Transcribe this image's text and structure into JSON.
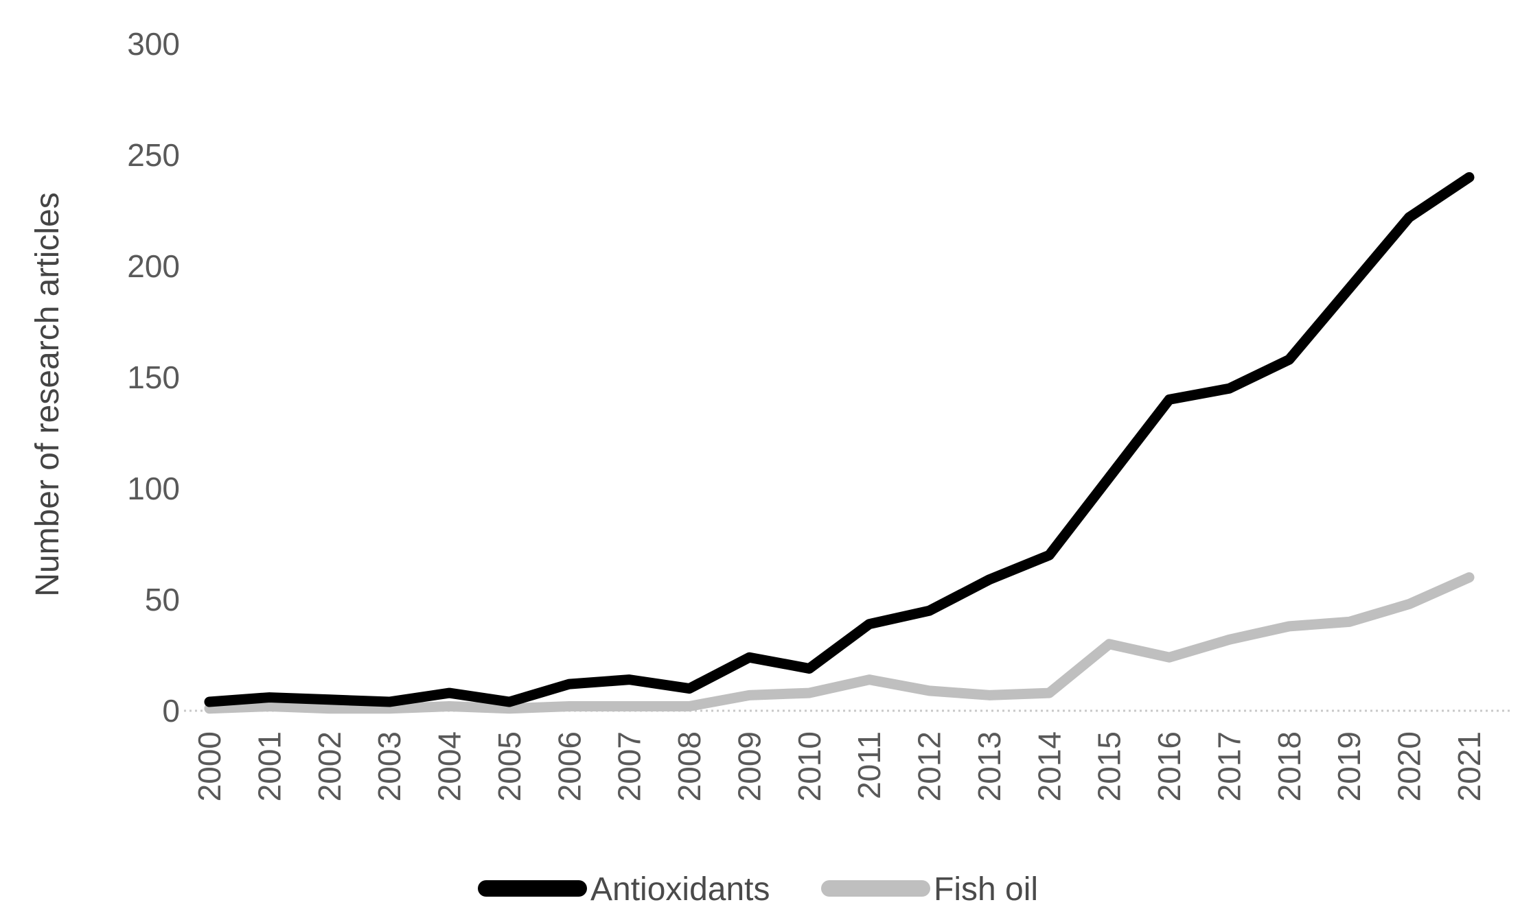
{
  "chart_data": {
    "type": "line",
    "title": "",
    "xlabel": "",
    "ylabel": "Number of research articles",
    "x": [
      "2000",
      "2001",
      "2002",
      "2003",
      "2004",
      "2005",
      "2006",
      "2007",
      "2008",
      "2009",
      "2010",
      "2011",
      "2012",
      "2013",
      "2014",
      "2015",
      "2016",
      "2017",
      "2018",
      "2019",
      "2020",
      "2021"
    ],
    "series": [
      {
        "name": "Antioxidants",
        "color": "#000000",
        "values": [
          4,
          6,
          5,
          4,
          8,
          4,
          12,
          14,
          10,
          24,
          19,
          39,
          45,
          59,
          70,
          105,
          140,
          145,
          158,
          190,
          222,
          240
        ]
      },
      {
        "name": "Fish oil",
        "color": "#bfbfbf",
        "values": [
          1,
          2,
          1,
          1,
          2,
          1,
          2,
          2,
          2,
          7,
          8,
          14,
          9,
          7,
          8,
          30,
          24,
          32,
          38,
          40,
          48,
          60
        ]
      }
    ],
    "ylim": [
      0,
      300
    ],
    "yticks": [
      0,
      50,
      100,
      150,
      200,
      250,
      300
    ],
    "grid": false,
    "legend_position": "bottom-center"
  },
  "colors": {
    "background": "#ffffff",
    "axis_line": "#c9c9c9",
    "tick_text": "#595959",
    "series_antioxidants": "#000000",
    "series_fish_oil": "#bfbfbf"
  },
  "legend": {
    "items": [
      {
        "label": "Antioxidants"
      },
      {
        "label": "Fish oil"
      }
    ]
  }
}
